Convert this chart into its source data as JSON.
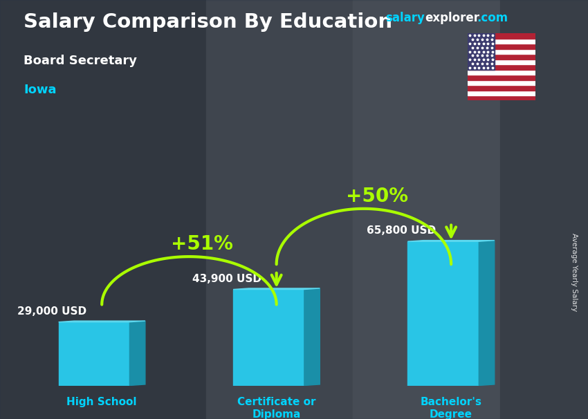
{
  "title": "Salary Comparison By Education",
  "subtitle": "Board Secretary",
  "location": "Iowa",
  "categories": [
    "High School",
    "Certificate or\nDiploma",
    "Bachelor's\nDegree"
  ],
  "values": [
    29000,
    43900,
    65800
  ],
  "value_labels": [
    "29,000 USD",
    "43,900 USD",
    "65,800 USD"
  ],
  "pct_changes": [
    "+51%",
    "+50%"
  ],
  "bar_color_face": "#29c5e6",
  "bar_color_dark": "#1a8fa8",
  "bar_color_top": "#5dd8ef",
  "title_color": "#ffffff",
  "subtitle_color": "#ffffff",
  "location_color": "#00d4ff",
  "value_label_color": "#ffffff",
  "pct_color": "#aaff00",
  "xlabel_color": "#00d4ff",
  "background_color": "#4a5568",
  "overlay_color": "#2d3748",
  "watermark_salary": "salary",
  "watermark_explorer": "explorer",
  "watermark_com": ".com",
  "watermark_salary_color": "#00d4ff",
  "watermark_explorer_color": "#ffffff",
  "watermark_com_color": "#00d4ff",
  "ylabel_text": "Average Yearly Salary",
  "figsize": [
    8.5,
    6.06
  ],
  "dpi": 100
}
